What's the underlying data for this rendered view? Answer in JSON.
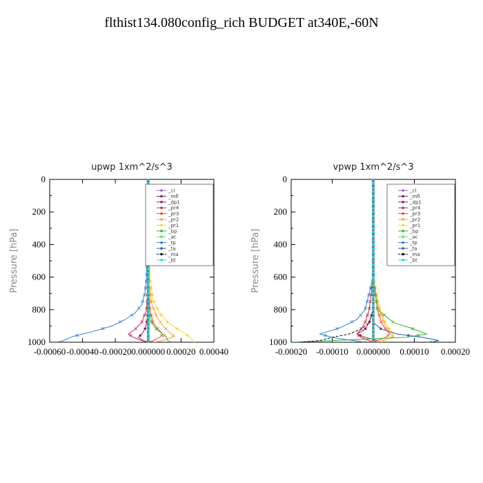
{
  "title": "flthist134.080config_rich  BUDGET at340E,-60N",
  "chart_data": [
    {
      "type": "line",
      "title": "upwp   1xm^2/s^3",
      "xlabel": "",
      "ylabel": "Pressure [hPa]",
      "xlim": [
        -0.0006,
        0.0004
      ],
      "ylim": [
        1000,
        0
      ],
      "xticks": [
        "-0.00060",
        "-0.00040",
        "-0.00020",
        "0.000000",
        "0.00020",
        "0.00040"
      ],
      "xtick_values": [
        -0.0006,
        -0.0004,
        -0.0002,
        0.0,
        0.0002,
        0.0004
      ],
      "yticks": [
        "0",
        "200",
        "400",
        "600",
        "800",
        "1000"
      ],
      "ytick_values": [
        0,
        200,
        400,
        600,
        800,
        1000
      ],
      "legend_position": "top-right",
      "series": [
        {
          "name": "_cl",
          "color": "#9b59d0",
          "marker": "circle",
          "x": [
            0,
            0,
            0,
            0,
            0,
            0,
            0,
            0,
            0,
            0,
            0
          ],
          "y": [
            0,
            100,
            200,
            300,
            400,
            500,
            600,
            700,
            800,
            900,
            1000
          ]
        },
        {
          "name": "_mfl",
          "color": "#7a1f6e",
          "marker": "diamond",
          "x": [
            0,
            0,
            0,
            0,
            0,
            0,
            0,
            0,
            0,
            0,
            0
          ],
          "y": [
            0,
            100,
            200,
            300,
            400,
            500,
            600,
            700,
            800,
            900,
            1000
          ]
        },
        {
          "name": "_dp1",
          "color": "#a0194a",
          "marker": "circle",
          "x": [
            0,
            0,
            0,
            0,
            -1e-05,
            -2e-05,
            -4e-05,
            -6e-05,
            -3e-05,
            0
          ],
          "y": [
            0,
            300,
            600,
            800,
            880,
            920,
            950,
            970,
            990,
            1000
          ]
        },
        {
          "name": "_pr4",
          "color": "#d4244a",
          "marker": "x",
          "x": [
            0,
            0,
            0,
            -1e-05,
            -4e-05,
            -8e-05,
            -0.00012,
            -9e-05,
            -4e-05,
            0
          ],
          "y": [
            0,
            300,
            600,
            800,
            880,
            920,
            950,
            970,
            990,
            1000
          ]
        },
        {
          "name": "_pr3",
          "color": "#e8493a",
          "marker": "x",
          "x": [
            0,
            0,
            0,
            1e-05,
            3e-05,
            6e-05,
            9e-05,
            7e-05,
            3e-05,
            0
          ],
          "y": [
            0,
            300,
            600,
            800,
            880,
            920,
            950,
            970,
            990,
            1000
          ]
        },
        {
          "name": "_pr2",
          "color": "#ff9e2a",
          "marker": "x",
          "x": [
            0,
            0,
            0,
            2e-05,
            5e-05,
            9e-05,
            0.00013,
            0.00016,
            0.0001,
            4e-05
          ],
          "y": [
            0,
            300,
            600,
            760,
            840,
            900,
            940,
            965,
            985,
            1000
          ]
        },
        {
          "name": "_pr1",
          "color": "#ffd23a",
          "marker": "circle",
          "x": [
            0,
            0,
            1e-05,
            3e-05,
            7e-05,
            0.00012,
            0.00018,
            0.00023,
            0.00026,
            0.00028
          ],
          "y": [
            0,
            300,
            600,
            740,
            820,
            880,
            920,
            950,
            975,
            1000
          ]
        },
        {
          "name": "_bp",
          "color": "#2bb52b",
          "marker": "x",
          "x": [
            0,
            0,
            0,
            0,
            2e-05,
            5e-05,
            9e-05,
            0.00011,
            0.00012,
            0.00013
          ],
          "y": [
            0,
            300,
            600,
            800,
            880,
            920,
            950,
            970,
            990,
            1000
          ]
        },
        {
          "name": "_ac",
          "color": "#5fe05f",
          "marker": "circle",
          "x": [
            0,
            0,
            0,
            0,
            0,
            0,
            0,
            0,
            0,
            0
          ],
          "y": [
            0,
            300,
            600,
            800,
            880,
            920,
            950,
            970,
            990,
            1000
          ]
        },
        {
          "name": "_tp",
          "color": "#2a7fd4",
          "marker": "x",
          "x": [
            0,
            0,
            -1e-05,
            -2e-05,
            -4e-05,
            -8e-05,
            -0.00014,
            -0.00022,
            -0.00034,
            -0.00046,
            -0.00054
          ],
          "y": [
            0,
            300,
            600,
            700,
            770,
            820,
            860,
            900,
            935,
            965,
            1000
          ]
        },
        {
          "name": "_ta",
          "color": "#1f5fb0",
          "marker": "diamond",
          "x": [
            0,
            0,
            0,
            0,
            0,
            0,
            0,
            0,
            0,
            0
          ],
          "y": [
            0,
            300,
            600,
            800,
            880,
            920,
            950,
            970,
            990,
            1000
          ]
        },
        {
          "name": "_ma",
          "color": "#111111",
          "marker": "dash",
          "x": [
            0,
            0,
            0,
            0,
            0,
            0,
            0,
            0,
            0,
            0
          ],
          "y": [
            0,
            300,
            600,
            800,
            880,
            920,
            950,
            970,
            990,
            1000
          ]
        },
        {
          "name": "_bt",
          "color": "#20d8d8",
          "marker": "circle",
          "x": [
            0,
            0,
            0,
            0,
            0,
            0,
            0,
            0,
            0,
            0
          ],
          "y": [
            0,
            300,
            600,
            800,
            880,
            920,
            950,
            970,
            990,
            1000
          ]
        }
      ]
    },
    {
      "type": "line",
      "title": "vpwp   1xm^2/s^3",
      "xlabel": "",
      "ylabel": "Pressure [hPa]",
      "xlim": [
        -0.0002,
        0.0002
      ],
      "ylim": [
        1000,
        0
      ],
      "xticks": [
        "-0.00020",
        "-0.00010",
        "0.000000",
        "0.00010",
        "0.00020"
      ],
      "xtick_values": [
        -0.0002,
        -0.0001,
        0.0,
        0.0001,
        0.0002
      ],
      "yticks": [
        "0",
        "200",
        "400",
        "600",
        "800",
        "1000"
      ],
      "ytick_values": [
        0,
        200,
        400,
        600,
        800,
        1000
      ],
      "legend_position": "top-right",
      "series": [
        {
          "name": "_cl",
          "color": "#9b59d0",
          "marker": "circle",
          "x": [
            0,
            0,
            0,
            0,
            0,
            0,
            0,
            0,
            0,
            0,
            0
          ],
          "y": [
            0,
            100,
            200,
            300,
            400,
            500,
            600,
            700,
            800,
            900,
            1000
          ]
        },
        {
          "name": "_mfl",
          "color": "#7a1f6e",
          "marker": "diamond",
          "x": [
            0,
            0,
            0,
            0,
            0,
            0,
            0,
            0,
            0,
            0,
            0
          ],
          "y": [
            0,
            100,
            200,
            300,
            400,
            500,
            600,
            700,
            800,
            900,
            1000
          ]
        },
        {
          "name": "_dp1",
          "color": "#a0194a",
          "marker": "circle",
          "x": [
            0,
            0,
            0,
            0,
            -1e-05,
            -2e-05,
            -4e-05,
            -2e-05,
            1e-05,
            0
          ],
          "y": [
            0,
            300,
            600,
            800,
            880,
            920,
            950,
            970,
            990,
            1000
          ]
        },
        {
          "name": "_pr4",
          "color": "#d4244a",
          "marker": "x",
          "x": [
            0,
            0,
            0,
            -1e-05,
            -2e-05,
            -3e-05,
            -4e-05,
            -3e-05,
            -1e-05,
            0
          ],
          "y": [
            0,
            300,
            600,
            800,
            880,
            920,
            950,
            970,
            990,
            1000
          ]
        },
        {
          "name": "_pr3",
          "color": "#e8493a",
          "marker": "x",
          "x": [
            0,
            0,
            0,
            1e-05,
            2e-05,
            3e-05,
            4e-05,
            3e-05,
            1e-05,
            0
          ],
          "y": [
            0,
            300,
            600,
            800,
            880,
            920,
            950,
            970,
            990,
            1000
          ]
        },
        {
          "name": "_pr2",
          "color": "#ff9e2a",
          "marker": "x",
          "x": [
            0,
            0,
            0,
            1e-05,
            2e-05,
            3e-05,
            4e-05,
            5e-05,
            3e-05,
            1e-05
          ],
          "y": [
            0,
            300,
            600,
            760,
            840,
            900,
            940,
            965,
            985,
            1000
          ]
        },
        {
          "name": "_pr1",
          "color": "#ffd23a",
          "marker": "circle",
          "x": [
            0,
            0,
            0,
            1e-05,
            2e-05,
            3e-05,
            4e-05,
            5e-05,
            4e-05,
            2e-05
          ],
          "y": [
            0,
            300,
            600,
            740,
            820,
            880,
            920,
            950,
            975,
            1000
          ]
        },
        {
          "name": "_bp",
          "color": "#2bb52b",
          "marker": "x",
          "x": [
            0,
            0,
            0,
            1e-05,
            5e-05,
            0.0001,
            0.00013,
            8e-05,
            -0.0001,
            -0.0002
          ],
          "y": [
            0,
            300,
            600,
            800,
            880,
            920,
            950,
            970,
            990,
            1000
          ]
        },
        {
          "name": "_ac",
          "color": "#5fe05f",
          "marker": "circle",
          "x": [
            0,
            0,
            0,
            0,
            0,
            0,
            0,
            0,
            0,
            0
          ],
          "y": [
            0,
            300,
            600,
            800,
            880,
            920,
            950,
            970,
            990,
            1000
          ]
        },
        {
          "name": "_tp",
          "color": "#2a7fd4",
          "marker": "x",
          "x": [
            0,
            0,
            0,
            -1e-05,
            -2e-05,
            -4e-05,
            -8e-05,
            -0.00013,
            -9e-05,
            -2e-05
          ],
          "y": [
            0,
            300,
            600,
            700,
            800,
            860,
            910,
            950,
            975,
            1000
          ]
        },
        {
          "name": "_ta",
          "color": "#1f5fb0",
          "marker": "diamond",
          "x": [
            0,
            0,
            0,
            0,
            0,
            2e-05,
            6e-05,
            0.00012,
            0.00016,
            0.00014
          ],
          "y": [
            0,
            300,
            600,
            800,
            880,
            920,
            950,
            970,
            990,
            1000
          ]
        },
        {
          "name": "_ma",
          "color": "#111111",
          "marker": "dash",
          "x": [
            0,
            0,
            0,
            0,
            -1e-05,
            -3e-05,
            -6e-05,
            -0.0001,
            -0.00013,
            -0.00018
          ],
          "y": [
            0,
            300,
            600,
            800,
            880,
            920,
            950,
            970,
            990,
            1000
          ]
        },
        {
          "name": "_bt",
          "color": "#20d8d8",
          "marker": "circle",
          "x": [
            0,
            0,
            0,
            0,
            0,
            0,
            0,
            0,
            0,
            0
          ],
          "y": [
            0,
            300,
            600,
            800,
            880,
            920,
            950,
            970,
            990,
            1000
          ]
        }
      ]
    }
  ]
}
